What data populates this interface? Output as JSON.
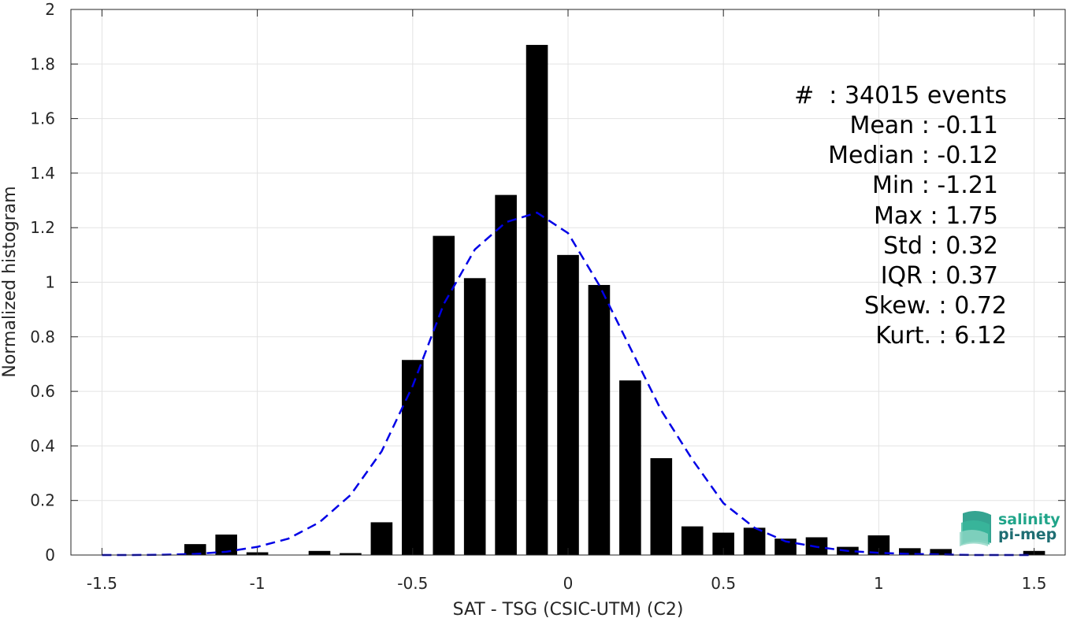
{
  "chart_data": {
    "type": "bar",
    "xlabel": "SAT - TSG (CSIC-UTM) (C2)",
    "ylabel": "Normalized histogram",
    "xlim": [
      -1.6,
      1.6
    ],
    "ylim": [
      0,
      2
    ],
    "xticks": [
      "-1.5",
      "-1",
      "-0.5",
      "0",
      "0.5",
      "1",
      "1.5"
    ],
    "yticks": [
      "0",
      "0.2",
      "0.4",
      "0.6",
      "0.8",
      "1",
      "1.2",
      "1.4",
      "1.6",
      "1.8",
      "2"
    ],
    "grid": true,
    "bar_width": 0.07,
    "bars": {
      "x": [
        -1.2,
        -1.1,
        -1.0,
        -0.8,
        -0.7,
        -0.6,
        -0.5,
        -0.4,
        -0.3,
        -0.2,
        -0.1,
        0.0,
        0.1,
        0.2,
        0.3,
        0.4,
        0.5,
        0.6,
        0.7,
        0.8,
        0.9,
        1.0,
        1.1,
        1.2,
        1.5
      ],
      "values": [
        0.04,
        0.075,
        0.01,
        0.015,
        0.007,
        0.12,
        0.715,
        1.17,
        1.015,
        1.32,
        1.87,
        1.1,
        0.99,
        0.64,
        0.355,
        0.105,
        0.082,
        0.1,
        0.06,
        0.065,
        0.03,
        0.072,
        0.025,
        0.022,
        0.015
      ],
      "color": "#000000"
    },
    "fit_curve": {
      "style": "dashed",
      "color": "#0000e6",
      "x": [
        -1.5,
        -1.4,
        -1.3,
        -1.2,
        -1.1,
        -1.0,
        -0.9,
        -0.8,
        -0.7,
        -0.6,
        -0.5,
        -0.4,
        -0.3,
        -0.2,
        -0.1,
        0.0,
        0.1,
        0.2,
        0.3,
        0.4,
        0.5,
        0.6,
        0.7,
        0.8,
        0.9,
        1.0,
        1.1,
        1.2,
        1.3,
        1.4,
        1.5
      ],
      "y": [
        0.0,
        0.0,
        0.001,
        0.004,
        0.012,
        0.03,
        0.06,
        0.12,
        0.22,
        0.38,
        0.62,
        0.92,
        1.12,
        1.22,
        1.255,
        1.18,
        0.99,
        0.76,
        0.53,
        0.35,
        0.19,
        0.1,
        0.05,
        0.03,
        0.015,
        0.008,
        0.004,
        0.002,
        0.0,
        0.0,
        0.0
      ]
    }
  },
  "stats": [
    "#  : 34015 events",
    "Mean : -0.11",
    "Median : -0.12",
    "Min : -1.21",
    "Max : 1.75",
    "Std : 0.32",
    "IQR : 0.37",
    "Skew. : 0.72",
    "Kurt. : 6.12"
  ],
  "logo": {
    "line1": "salinity",
    "line2": "pi-mep",
    "color1": "#21a58a",
    "color2": "#1f6e73"
  }
}
